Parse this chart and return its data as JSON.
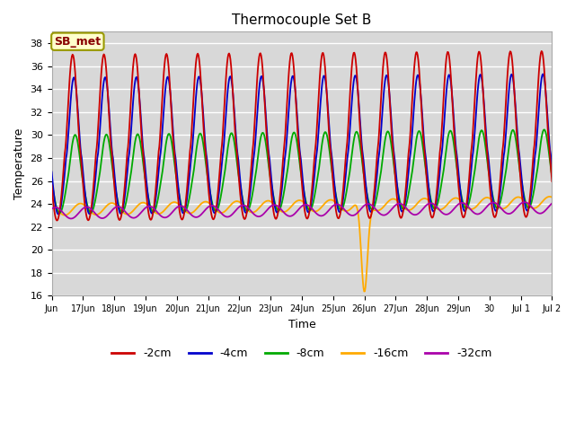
{
  "title": "Thermocouple Set B",
  "xlabel": "Time",
  "ylabel": "Temperature",
  "ylim": [
    16,
    39
  ],
  "xlim_start": 0,
  "xlim_end": 16,
  "annotation": "SB_met",
  "bg_color": "#d8d8d8",
  "fig_color": "#ffffff",
  "grid_color": "#ffffff",
  "lines": {
    "-2cm": {
      "color": "#cc0000",
      "lw": 1.3
    },
    "-4cm": {
      "color": "#0000cc",
      "lw": 1.3
    },
    "-8cm": {
      "color": "#00aa00",
      "lw": 1.3
    },
    "-16cm": {
      "color": "#ffaa00",
      "lw": 1.3
    },
    "-32cm": {
      "color": "#aa00aa",
      "lw": 1.3
    }
  },
  "xtick_labels": [
    "Jun",
    "17Jun",
    "18Jun",
    "19Jun",
    "20Jun",
    "21Jun",
    "22Jun",
    "23Jun",
    "24Jun",
    "25Jun",
    "26Jun",
    "27Jun",
    "28Jun",
    "29Jun",
    "30",
    "Jul 1",
    "Jul 2"
  ],
  "ytick_vals": [
    16,
    18,
    20,
    22,
    24,
    26,
    28,
    30,
    32,
    34,
    36,
    38
  ],
  "legend_labels": [
    "-2cm",
    "-4cm",
    "-8cm",
    "-16cm",
    "-32cm"
  ],
  "legend_colors": [
    "#cc0000",
    "#0000cc",
    "#00aa00",
    "#ffaa00",
    "#aa00aa"
  ]
}
